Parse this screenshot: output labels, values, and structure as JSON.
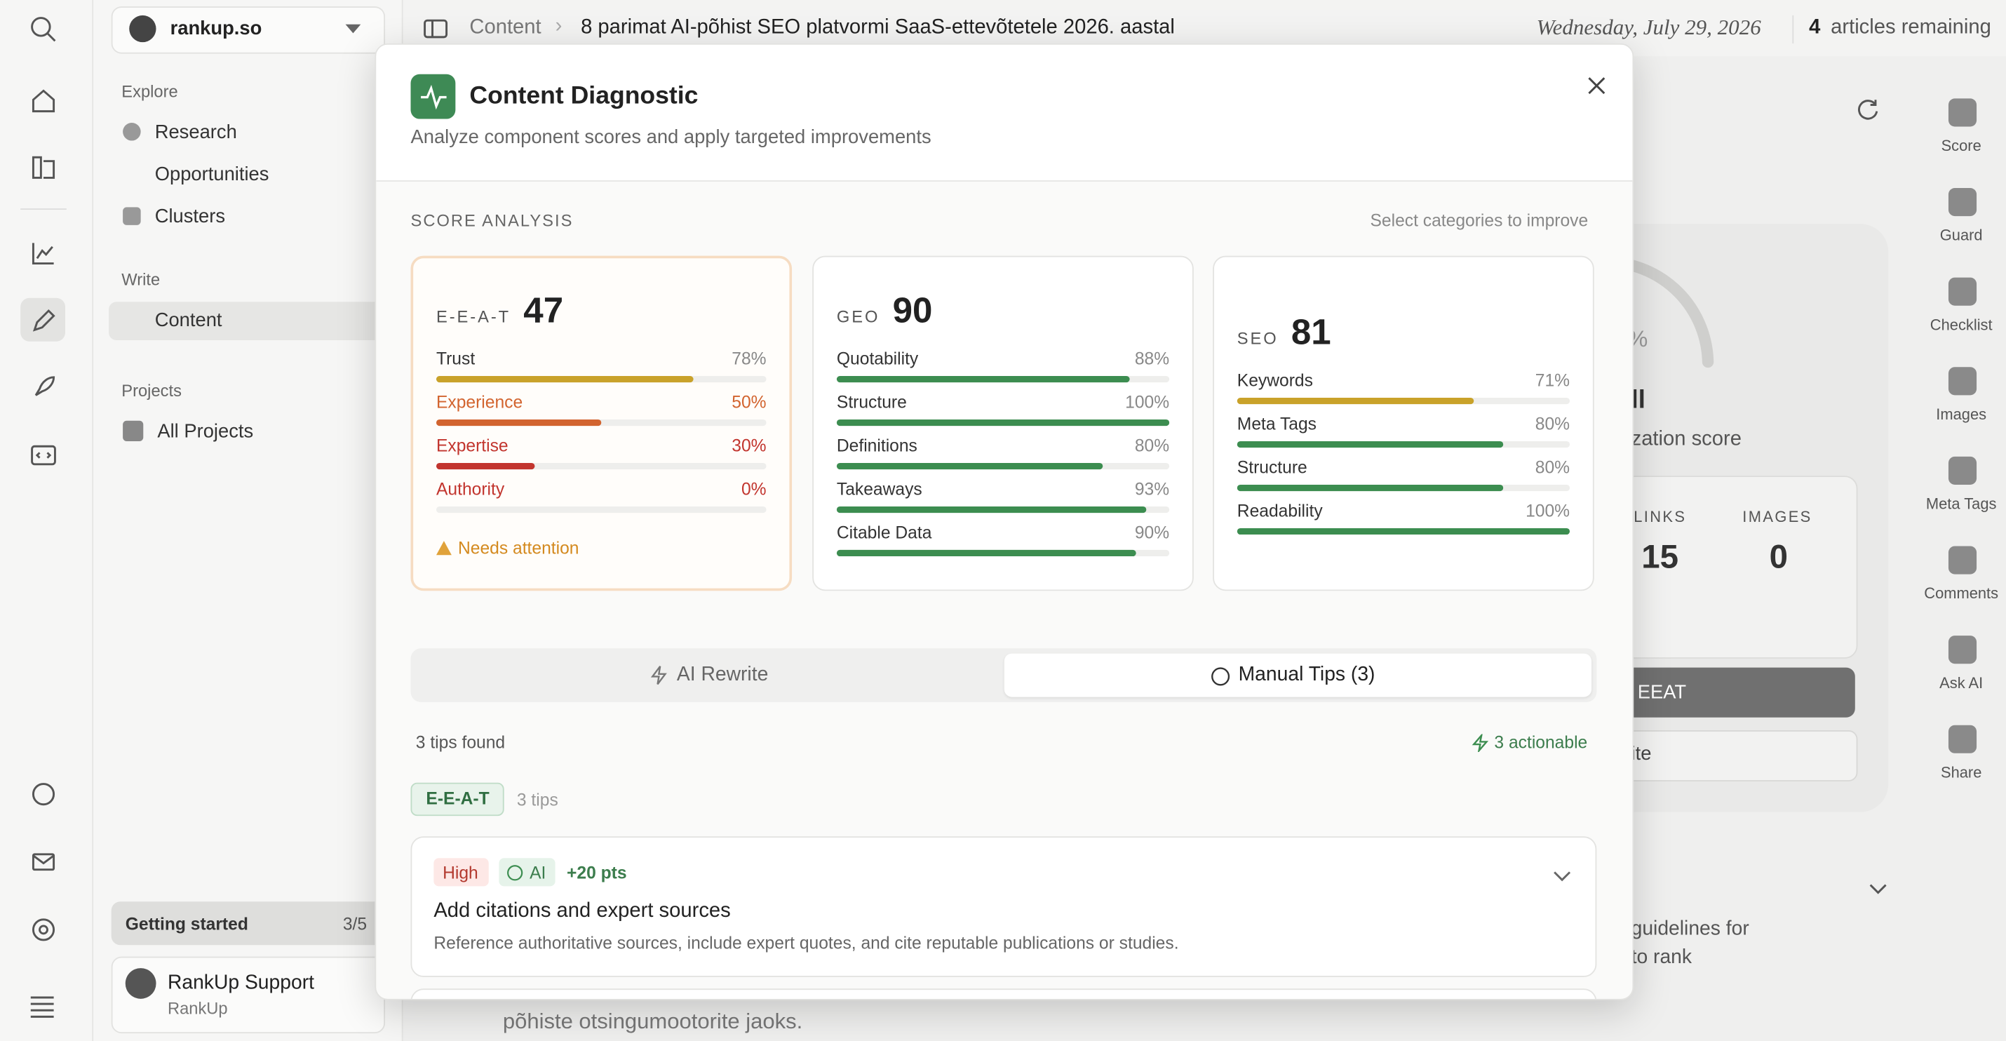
{
  "sidebar": {
    "workspace": "rankup.so",
    "explore": {
      "title": "Explore",
      "items": [
        "Research",
        "Opportunities",
        "Clusters"
      ]
    },
    "write": {
      "title": "Write",
      "items": [
        "Content"
      ]
    },
    "projects": {
      "title": "Projects",
      "items": [
        "All Projects"
      ]
    },
    "getting_started": {
      "label": "Getting started",
      "progress": "3/5"
    },
    "account": {
      "name": "RankUp Support",
      "org": "RankUp"
    }
  },
  "topbar": {
    "breadcrumb": [
      "Content",
      "8 parimat AI-põhist SEO platvormi SaaS-ettevõtetele 2026. aastal"
    ],
    "date": "Wednesday, July 29, 2026",
    "remaining_count": "4",
    "remaining_label": "articles remaining"
  },
  "background": {
    "percent": "%",
    "score_word": "ll",
    "score_label": "zation score",
    "links_label": "LINKS",
    "links": "15",
    "images_label": "IMAGES",
    "images": "0",
    "eeat_button": "EEAT",
    "rewrite_button": "ite",
    "guidelines": "guidelines for",
    "to_rank": "to rank",
    "body_text": "põhiste otsingumootorite jaoks."
  },
  "right_rail": [
    "Score",
    "Guard",
    "Checklist",
    "Images",
    "Meta Tags",
    "Comments",
    "Ask AI",
    "Share"
  ],
  "modal": {
    "title": "Content Diagnostic",
    "subtitle": "Analyze component scores and apply targeted improvements",
    "section_label": "SCORE ANALYSIS",
    "hint": "Select categories to improve",
    "cards": [
      {
        "name": "E-E-A-T",
        "score": "47",
        "warning": "Needs attention",
        "metrics": [
          {
            "label": "Trust",
            "value": 78,
            "value_label": "78%",
            "color": "#c9a22a",
            "alert": false
          },
          {
            "label": "Experience",
            "value": 50,
            "value_label": "50%",
            "color": "#d2642f",
            "alert": true
          },
          {
            "label": "Expertise",
            "value": 30,
            "value_label": "30%",
            "color": "#c2352e",
            "alert": true
          },
          {
            "label": "Authority",
            "value": 0,
            "value_label": "0%",
            "color": "#c2352e",
            "alert": true
          }
        ]
      },
      {
        "name": "GEO",
        "score": "90",
        "metrics": [
          {
            "label": "Quotability",
            "value": 88,
            "value_label": "88%",
            "color": "#3c8d50",
            "alert": false
          },
          {
            "label": "Structure",
            "value": 100,
            "value_label": "100%",
            "color": "#3c8d50",
            "alert": false
          },
          {
            "label": "Definitions",
            "value": 80,
            "value_label": "80%",
            "color": "#3c8d50",
            "alert": false
          },
          {
            "label": "Takeaways",
            "value": 93,
            "value_label": "93%",
            "color": "#3c8d50",
            "alert": false
          },
          {
            "label": "Citable Data",
            "value": 90,
            "value_label": "90%",
            "color": "#3c8d50",
            "alert": false
          }
        ]
      },
      {
        "name": "SEO",
        "score": "81",
        "metrics": [
          {
            "label": "Keywords",
            "value": 71,
            "value_label": "71%",
            "color": "#c9a22a",
            "alert": false
          },
          {
            "label": "Meta Tags",
            "value": 80,
            "value_label": "80%",
            "color": "#3c8d50",
            "alert": false
          },
          {
            "label": "Structure",
            "value": 80,
            "value_label": "80%",
            "color": "#3c8d50",
            "alert": false
          },
          {
            "label": "Readability",
            "value": 100,
            "value_label": "100%",
            "color": "#3c8d50",
            "alert": false
          }
        ]
      }
    ],
    "tabs": [
      "AI Rewrite",
      "Manual Tips (3)"
    ],
    "tips_found": "3 tips found",
    "actionable": "3 actionable",
    "group": {
      "tag": "E-E-A-T",
      "count": "3 tips"
    },
    "tip": {
      "priority": "High",
      "badge": "AI",
      "points": "+20 pts",
      "title": "Add citations and expert sources",
      "description": "Reference authoritative sources, include expert quotes, and cite reputable publications or studies."
    }
  }
}
